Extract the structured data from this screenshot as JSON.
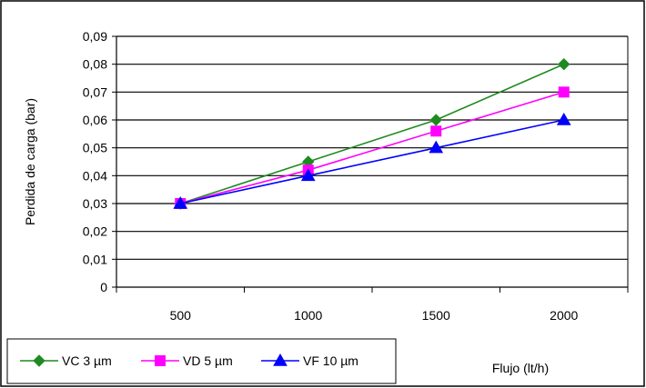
{
  "chart_data": {
    "type": "line",
    "x": [
      500,
      1000,
      1500,
      2000
    ],
    "categories": [
      "500",
      "1000",
      "1500",
      "2000"
    ],
    "xlabel": "Flujo (lt/h)",
    "ylabel": "Perdida de carga (bar)",
    "ylim": [
      0,
      0.09
    ],
    "yticks": [
      "0",
      "0,01",
      "0,02",
      "0,03",
      "0,04",
      "0,05",
      "0,06",
      "0,07",
      "0,08",
      "0,09"
    ],
    "grid": "horizontal",
    "legend_position": "bottom-left",
    "series": [
      {
        "name": "VC 3 µm",
        "values": [
          0.03,
          0.045,
          0.06,
          0.08
        ],
        "color": "#1f8a1f",
        "marker": "diamond"
      },
      {
        "name": "VD 5 µm",
        "values": [
          0.03,
          0.042,
          0.056,
          0.07
        ],
        "color": "#ff00ff",
        "marker": "square"
      },
      {
        "name": "VF 10 µm",
        "values": [
          0.03,
          0.04,
          0.05,
          0.06
        ],
        "color": "#0000ff",
        "marker": "triangle"
      }
    ]
  }
}
